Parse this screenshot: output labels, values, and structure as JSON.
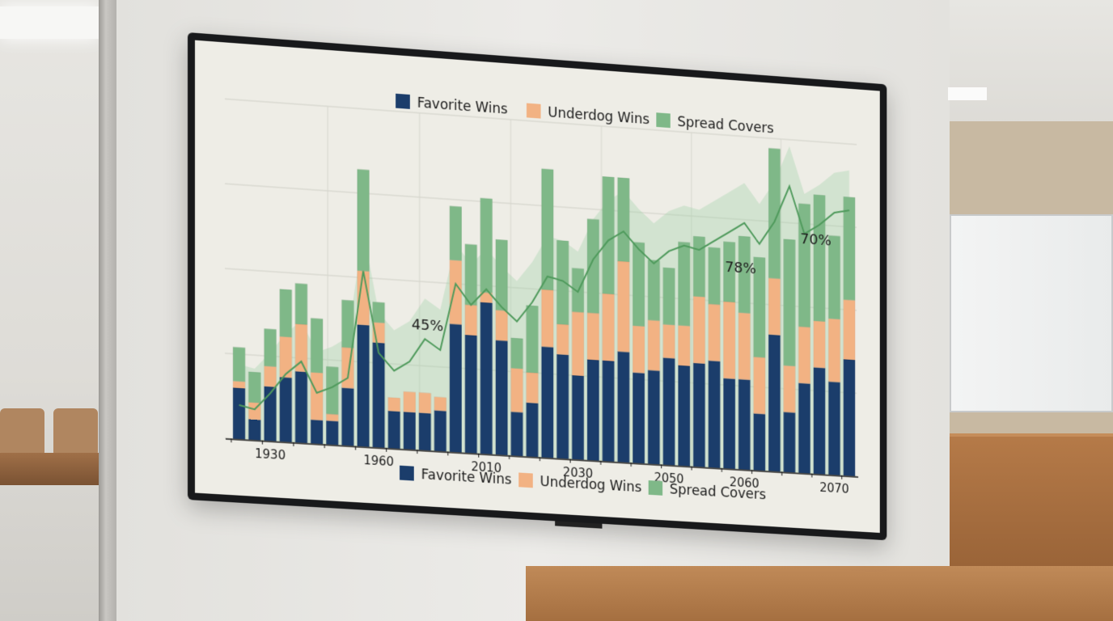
{
  "chart_data": {
    "type": "bar",
    "stacked": true,
    "legend": [
      {
        "name": "Favorite Wins",
        "color": "#1b3d6b"
      },
      {
        "name": "Underdog Wins",
        "color": "#f2b283"
      },
      {
        "name": "Spread Covers",
        "color": "#7fb888"
      }
    ],
    "legend_positions": [
      "top",
      "bottom"
    ],
    "x_ticks": [
      "1930",
      "1960",
      "2010",
      "2030",
      "2050",
      "2060",
      "2070"
    ],
    "annotations": [
      "45%",
      "78%",
      "70%"
    ],
    "grid": true,
    "ylim": [
      0,
      100
    ],
    "series": [
      {
        "name": "Favorite Wins",
        "values": [
          15,
          6,
          16,
          19,
          21,
          7,
          7,
          17,
          36,
          31,
          11,
          11,
          11,
          12,
          38,
          35,
          45,
          34,
          13,
          16,
          33,
          31,
          25,
          30,
          30,
          33,
          27,
          28,
          32,
          30,
          31,
          32,
          27,
          27,
          17,
          41,
          18,
          27,
          32,
          28,
          35
        ]
      },
      {
        "name": "Underdog Wins",
        "values": [
          2,
          5,
          6,
          12,
          14,
          14,
          2,
          12,
          16,
          6,
          4,
          6,
          6,
          4,
          19,
          9,
          3,
          9,
          13,
          9,
          17,
          9,
          19,
          14,
          20,
          27,
          14,
          15,
          10,
          12,
          20,
          17,
          23,
          20,
          17,
          17,
          14,
          17,
          14,
          19,
          18
        ]
      },
      {
        "name": "Spread Covers",
        "values": [
          10,
          9,
          11,
          14,
          12,
          16,
          14,
          14,
          30,
          6,
          0,
          0,
          0,
          0,
          16,
          18,
          28,
          21,
          9,
          20,
          36,
          25,
          13,
          28,
          35,
          25,
          25,
          18,
          17,
          25,
          18,
          17,
          18,
          23,
          30,
          39,
          38,
          37,
          38,
          25,
          31
        ]
      }
    ],
    "line_series": {
      "values": [
        10,
        9,
        14,
        20,
        24,
        15,
        17,
        20,
        52,
        28,
        23,
        26,
        33,
        30,
        50,
        44,
        49,
        44,
        40,
        46,
        54,
        53,
        50,
        60,
        66,
        69,
        64,
        60,
        64,
        66,
        65,
        68,
        71,
        74,
        68,
        75,
        86,
        72,
        75,
        79,
        80
      ]
    }
  }
}
